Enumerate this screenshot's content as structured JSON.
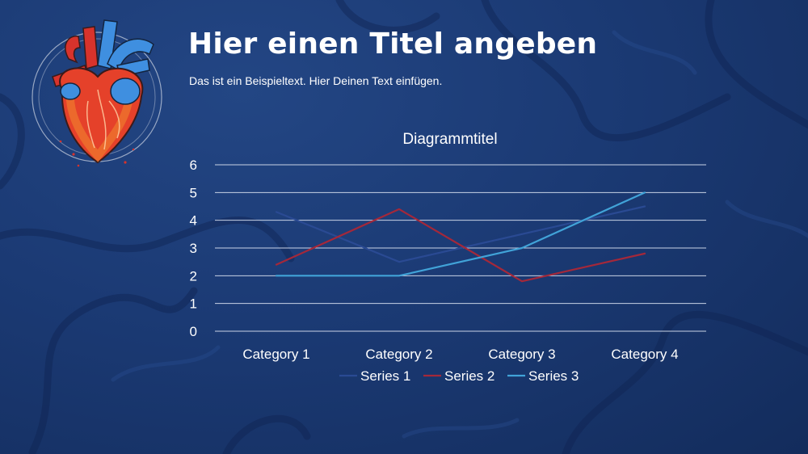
{
  "slide": {
    "title": "Hier einen Titel angeben",
    "subtitle": "Das ist ein Beispieltext. Hier Deinen Text einfügen."
  },
  "logo": {
    "icon": "anatomical-heart-icon"
  },
  "colors": {
    "background": "#1b3a74",
    "gridline": "#c9d3e6",
    "series1": "#2a4a93",
    "series2": "#a4283a",
    "series3": "#41a3d8"
  },
  "chart_data": {
    "type": "line",
    "title": "Diagrammtitel",
    "categories": [
      "Category 1",
      "Category 2",
      "Category 3",
      "Category 4"
    ],
    "series": [
      {
        "name": "Series 1",
        "values": [
          4.3,
          2.5,
          3.5,
          4.5
        ],
        "color": "#2a4a93"
      },
      {
        "name": "Series 2",
        "values": [
          2.4,
          4.4,
          1.8,
          2.8
        ],
        "color": "#a4283a"
      },
      {
        "name": "Series 3",
        "values": [
          2,
          2,
          3,
          5
        ],
        "color": "#41a3d8"
      }
    ],
    "ylim": [
      0,
      6
    ],
    "yticks": [
      "0",
      "1",
      "2",
      "3",
      "4",
      "5",
      "6"
    ],
    "grid": true,
    "legend": "bottom"
  }
}
